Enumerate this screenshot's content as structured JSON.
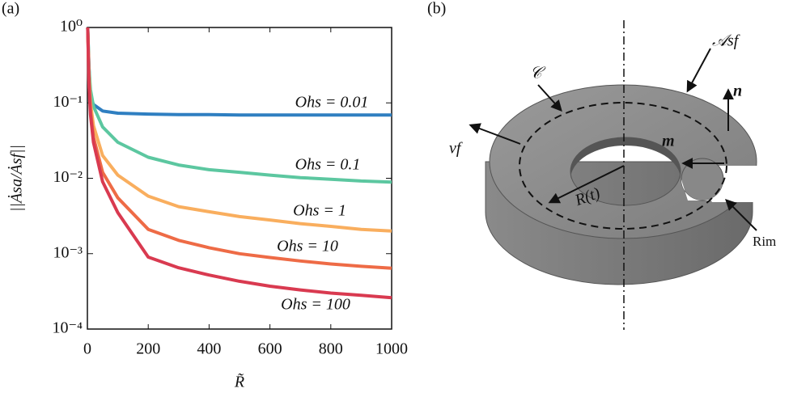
{
  "panels": [
    "(a)",
    "(b)"
  ],
  "chart_data": {
    "type": "line",
    "x_label": "R̃",
    "y_label": "||Ȧsa/Ȧsf||",
    "log_y": true,
    "x": [
      1,
      5,
      10,
      20,
      50,
      100,
      200,
      300,
      400,
      500,
      600,
      700,
      800,
      900,
      1000
    ],
    "series": [
      {
        "name": "Ohs = 0.01",
        "color": "#2f7fc1",
        "values": [
          1,
          0.3,
          0.12,
          0.095,
          0.078,
          0.073,
          0.071,
          0.07,
          0.07,
          0.069,
          0.069,
          0.069,
          0.069,
          0.069,
          0.069
        ]
      },
      {
        "name": "Ohs = 0.1",
        "color": "#5cc7a0",
        "values": [
          1,
          0.3,
          0.15,
          0.09,
          0.048,
          0.03,
          0.019,
          0.015,
          0.013,
          0.012,
          0.011,
          0.0102,
          0.0097,
          0.0092,
          0.0089
        ]
      },
      {
        "name": "Ohs = 1",
        "color": "#f9ae5e",
        "values": [
          1,
          0.25,
          0.1,
          0.05,
          0.02,
          0.011,
          0.0058,
          0.0042,
          0.0036,
          0.0031,
          0.0028,
          0.0025,
          0.0023,
          0.0021,
          0.002
        ]
      },
      {
        "name": "Ohs = 10",
        "color": "#ee6b46",
        "values": [
          1,
          0.2,
          0.08,
          0.035,
          0.012,
          0.0055,
          0.0021,
          0.0015,
          0.0012,
          0.001,
          0.00089,
          0.0008,
          0.00073,
          0.00068,
          0.00064
        ]
      },
      {
        "name": "Ohs = 100",
        "color": "#d93a50",
        "values": [
          1,
          0.18,
          0.07,
          0.03,
          0.009,
          0.0035,
          0.0009,
          0.00065,
          0.00052,
          0.00043,
          0.00037,
          0.00033,
          0.0003,
          0.00028,
          0.00026
        ]
      }
    ],
    "xlim": [
      0,
      1000
    ],
    "xticks": [
      0,
      200,
      400,
      600,
      800,
      1000
    ],
    "ylim": [
      0.0001,
      1
    ],
    "yticks": [
      {
        "value": 1,
        "label": "10⁰"
      },
      {
        "value": 0.1,
        "label": "10⁻¹"
      },
      {
        "value": 0.01,
        "label": "10⁻²"
      },
      {
        "value": 0.001,
        "label": "10⁻³"
      },
      {
        "value": 0.0001,
        "label": "10⁻⁴"
      }
    ]
  },
  "diagram": {
    "labels": [
      "𝒜sf",
      "𝒞",
      "n",
      "m",
      "vf",
      "R(t)",
      "Rim"
    ]
  }
}
